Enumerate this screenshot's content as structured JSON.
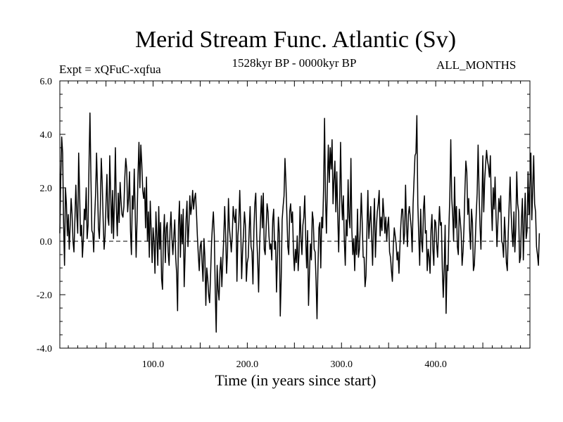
{
  "chart_data": {
    "type": "line",
    "title": "Merid Stream Func. Atlantic (Sv)",
    "subtitle": "1528kyr BP - 0000kyr BP",
    "annotations": {
      "expt": "Expt = xQFuC-xqfua",
      "months": "ALL_MONTHS"
    },
    "xlabel": "Time (in years since start)",
    "ylabel": "",
    "xlim": [
      1,
      500
    ],
    "ylim": [
      -4.0,
      6.0
    ],
    "x_ticks": [
      100,
      200,
      300,
      400
    ],
    "x_tick_labels": [
      "100.0",
      "200.0",
      "300.0",
      "400.0"
    ],
    "y_ticks": [
      -4,
      -2,
      0,
      2,
      4,
      6
    ],
    "y_tick_labels": [
      "-4.0",
      "-2.0",
      "0.0",
      "2.0",
      "4.0",
      "6.0"
    ],
    "reference_line": {
      "y": 0,
      "style": "dashed"
    },
    "grid": false,
    "series": [
      {
        "color": "#000000",
        "x_start": 1,
        "x_step": 1,
        "values": [
          0.3,
          2.4,
          3.9,
          3.3,
          0.7,
          -0.9,
          2.0,
          1.4,
          0.2,
          1.0,
          -0.3,
          0.6,
          1.6,
          1.0,
          0.0,
          -0.4,
          0.8,
          2.1,
          1.0,
          0.3,
          3.3,
          1.8,
          0.2,
          0.6,
          -0.6,
          0.1,
          1.2,
          0.8,
          2.0,
          0.1,
          0.6,
          2.9,
          4.8,
          2.4,
          0.4,
          0.3,
          -0.4,
          0.9,
          1.8,
          3.3,
          2.0,
          0.5,
          0.1,
          1.3,
          3.1,
          2.2,
          0.8,
          -0.3,
          0.2,
          1.4,
          2.5,
          0.9,
          0.6,
          3.2,
          1.8,
          0.3,
          1.9,
          0.1,
          1.6,
          3.5,
          1.2,
          0.2,
          1.8,
          0.7,
          2.2,
          1.5,
          1.0,
          0.9,
          1.3,
          2.4,
          3.1,
          2.7,
          1.1,
          1.6,
          2.6,
          0.4,
          -0.5,
          1.7,
          1.2,
          2.7,
          1.1,
          -0.6,
          0.8,
          2.5,
          3.7,
          2.0,
          3.6,
          2.9,
          1.9,
          1.6,
          2.0,
          0.5,
          2.4,
          0.0,
          1.1,
          -0.6,
          1.5,
          0.4,
          -0.8,
          0.5,
          0.0,
          -1.2,
          1.1,
          0.2,
          -0.9,
          1.3,
          -0.3,
          0.7,
          -1.4,
          -1.8,
          0.2,
          1.0,
          -0.8,
          0.5,
          0.7,
          -0.4,
          -0.9,
          0.4,
          1.1,
          0.1,
          -0.5,
          0.2,
          0.8,
          -0.6,
          -1.2,
          -2.6,
          0.6,
          1.5,
          -0.6,
          1.0,
          -0.1,
          1.2,
          -1.7,
          -0.5,
          0.8,
          1.5,
          -0.2,
          0.6,
          1.7,
          1.0,
          1.3,
          1.9,
          1.2,
          1.6,
          1.8,
          1.1,
          0.2,
          -0.5,
          -1.1,
          -0.2,
          0.0,
          -0.8,
          -1.5,
          0.1,
          -0.6,
          -2.4,
          -1.0,
          -1.4,
          -2.0,
          -2.3,
          -1.3,
          -0.1,
          0.6,
          1.1,
          0.2,
          -1.9,
          -3.4,
          -0.9,
          -1.8,
          -2.2,
          -1.1,
          -0.6,
          -1.7,
          -0.7,
          0.1,
          1.3,
          0.3,
          -1.2,
          -0.4,
          1.6,
          0.5,
          0.1,
          -0.4,
          0.2,
          1.3,
          0.9,
          0.7,
          1.2,
          -1.5,
          0.2,
          0.7,
          1.9,
          0.6,
          -1.4,
          -0.4,
          0.3,
          1.1,
          0.6,
          -1.5,
          -0.8,
          -0.6,
          0.4,
          1.3,
          -0.2,
          -0.4,
          -1.6,
          0.4,
          1.4,
          1.8,
          0.2,
          -0.7,
          -1.9,
          -0.2,
          0.8,
          1.7,
          0.5,
          1.8,
          -0.3,
          -0.5,
          0.5,
          1.4,
          1.1,
          0.2,
          -0.3,
          -0.1,
          -0.7,
          0.8,
          1.2,
          -0.3,
          0.0,
          -1.9,
          -0.6,
          0.9,
          0.3,
          -2.8,
          -1.4,
          0.8,
          1.3,
          1.7,
          3.1,
          2.2,
          1.0,
          -0.2,
          -0.5,
          1.1,
          1.4,
          0.7,
          1.1,
          -0.4,
          -1.1,
          -0.3,
          -0.8,
          0.2,
          -1.1,
          -0.4,
          1.3,
          0.1,
          -0.5,
          0.6,
          0.9,
          1.7,
          0.1,
          -1.0,
          0.4,
          -2.4,
          -1.2,
          -0.1,
          -0.7,
          1.1,
          0.8,
          -0.3,
          -0.4,
          -1.5,
          -2.9,
          -1.0,
          0.5,
          0.7,
          -1.0,
          0.9,
          0.5,
          2.0,
          4.6,
          1.6,
          0.3,
          2.1,
          3.6,
          2.2,
          3.5,
          2.7,
          3.8,
          1.4,
          2.3,
          3.0,
          1.1,
          2.6,
          1.0,
          -0.4,
          1.3,
          3.7,
          1.7,
          0.8,
          1.7,
          0.0,
          -0.9,
          0.8,
          0.2,
          2.3,
          0.9,
          0.5,
          3.1,
          0.4,
          -0.5,
          0.1,
          -1.1,
          0.2,
          -0.5,
          1.2,
          -0.6,
          -0.3,
          0.6,
          1.8,
          0.7,
          -0.6,
          -0.6,
          -1.7,
          -1.3,
          0.4,
          1.9,
          0.1,
          0.7,
          1.3,
          0.2,
          -0.9,
          0.6,
          1.6,
          -0.6,
          0.5,
          1.1,
          1.4,
          1.9,
          0.2,
          0.9,
          0.4,
          1.6,
          1.0,
          0.3,
          0.9,
          0.0,
          0.6,
          0.9,
          -0.4,
          -0.6,
          -1.1,
          -1.5,
          -0.2,
          0.5,
          0.2,
          -0.1,
          -0.7,
          -0.4,
          -1.2,
          -0.2,
          0.6,
          1.2,
          1.2,
          -0.1,
          0.3,
          2.1,
          0.6,
          -0.2,
          1.0,
          1.3,
          0.9,
          0.5,
          -0.4,
          1.4,
          2.3,
          3.2,
          3.3,
          4.7,
          1.4,
          0.2,
          -0.9,
          1.2,
          0.0,
          -0.4,
          1.2,
          1.7,
          0.3,
          0.4,
          -1.1,
          -0.3,
          -0.6,
          -1.2,
          0.4,
          1.0,
          -0.3,
          -0.9,
          0.8,
          0.7,
          -0.1,
          -0.6,
          0.4,
          1.3,
          0.6,
          0.7,
          -1.0,
          -2.1,
          -1.0,
          0.6,
          -2.7,
          -0.9,
          -1.1,
          0.5,
          1.7,
          3.8,
          1.6,
          1.0,
          0.0,
          2.4,
          0.5,
          1.3,
          -0.2,
          -0.5,
          1.2,
          0.8,
          0.3,
          -0.9,
          -0.4,
          0.5,
          1.9,
          3.0,
          2.6,
          1.0,
          1.6,
          0.4,
          -0.3,
          1.2,
          0.7,
          -1.1,
          -0.9,
          0.0,
          1.0,
          1.8,
          3.6,
          1.9,
          0.6,
          -0.3,
          1.3,
          3.2,
          1.1,
          2.3,
          2.9,
          3.4,
          3.0,
          2.8,
          2.4,
          3.2,
          1.5,
          0.4,
          2.0,
          1.2,
          2.4,
          1.0,
          -0.2,
          0.7,
          1.6,
          1.1,
          1.7,
          0.0,
          -0.1,
          -0.6,
          0.9,
          0.2,
          -0.8,
          -1.1,
          0.3,
          1.4,
          2.4,
          1.1,
          0.3,
          -0.2,
          1.1,
          -0.4,
          0.5,
          2.6,
          1.4,
          1.1,
          -0.8,
          -0.6,
          0.8,
          1.6,
          -0.7,
          0.7,
          1.8,
          0.1,
          0.4,
          2.6,
          1.0,
          2.1,
          3.3,
          0.8,
          2.0,
          3.2,
          1.4,
          1.1,
          -0.2,
          -0.5,
          -0.9,
          0.3
        ]
      }
    ]
  }
}
